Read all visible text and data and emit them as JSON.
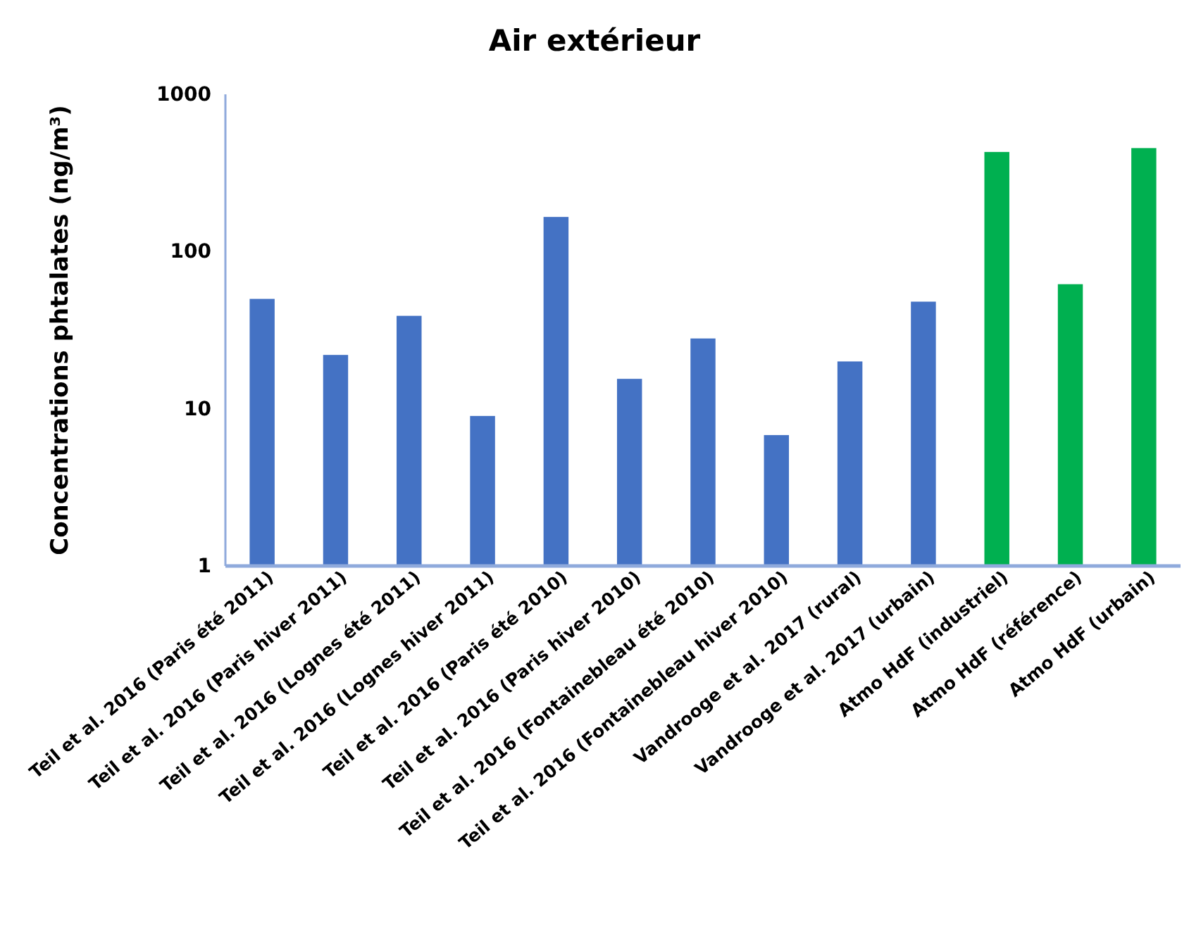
{
  "chart_data": {
    "type": "bar",
    "title": "Air extérieur",
    "ylabel": "Concentrations phtalates (ng/m³)",
    "categories": [
      "Teil et al. 2016 (Paris été 2011)",
      "Teil et al. 2016 (Paris hiver 2011)",
      "Teil et al. 2016 (Lognes été 2011)",
      "Teil et al. 2016 (Lognes hiver 2011)",
      "Teil et al. 2016 (Paris été 2010)",
      "Teil et al. 2016 (Paris hiver 2010)",
      "Teil et al. 2016 (Fontainebleau été 2010)",
      "Teil et al. 2016 (Fontainebleau hiver 2010)",
      "Vandrooge et al. 2017 (rural)",
      "Vandrooge et al. 2017 (urbain)",
      "Atmo HdF (industriel)",
      "Atmo HdF (référence)",
      "Atmo HdF (urbain)"
    ],
    "values": [
      50,
      22,
      39,
      9,
      166,
      15.5,
      28,
      6.8,
      20,
      48,
      430,
      62,
      455
    ],
    "colors": [
      "#4472c4",
      "#4472c4",
      "#4472c4",
      "#4472c4",
      "#4472c4",
      "#4472c4",
      "#4472c4",
      "#4472c4",
      "#4472c4",
      "#4472c4",
      "#00b050",
      "#00b050",
      "#00b050"
    ],
    "log": true,
    "ylim": [
      1,
      1000
    ],
    "yticks": [
      1,
      10,
      100,
      1000
    ],
    "grid": false
  }
}
